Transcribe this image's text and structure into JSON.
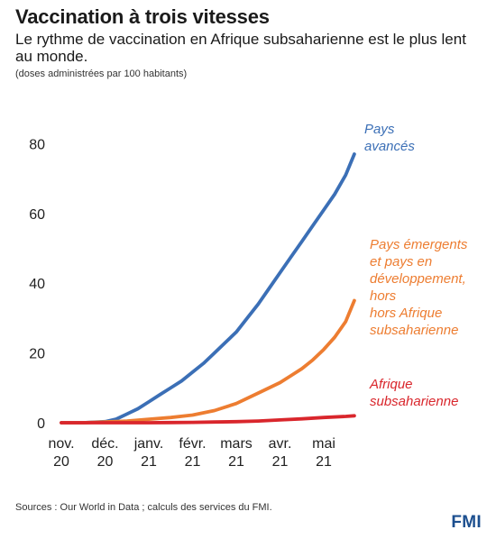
{
  "header": {
    "title": "Vaccination à trois vitesses",
    "subtitle": "Le rythme de vaccination en Afrique subsaharienne est le plus lent au monde.",
    "unit_note": "(doses administrées par 100 habitants)"
  },
  "footer": {
    "source": "Sources : Our World in Data ; calculs des services du FMI.",
    "logo": "FMI"
  },
  "chart_data": {
    "type": "line",
    "title": "Vaccination à trois vitesses",
    "ylim": [
      0,
      80
    ],
    "yticks": [
      0,
      20,
      40,
      60,
      80
    ],
    "grid": false,
    "xticks": [
      {
        "month": 0,
        "line1": "nov.",
        "line2": "20"
      },
      {
        "month": 1,
        "line1": "déc.",
        "line2": "20"
      },
      {
        "month": 2,
        "line1": "janv.",
        "line2": "21"
      },
      {
        "month": 3,
        "line1": "févr.",
        "line2": "21"
      },
      {
        "month": 4,
        "line1": "mars",
        "line2": "21"
      },
      {
        "month": 5,
        "line1": "avr.",
        "line2": "21"
      },
      {
        "month": 6,
        "line1": "mai",
        "line2": "21"
      }
    ],
    "series": [
      {
        "label_lines": [
          "Pays",
          "avancés"
        ],
        "color": "#3b6fb6",
        "x": [
          0,
          0.5,
          1.0,
          1.25,
          1.5,
          1.75,
          2.0,
          2.25,
          2.5,
          2.75,
          3.0,
          3.25,
          3.5,
          3.75,
          4.0,
          4.25,
          4.5,
          4.75,
          5.0,
          5.25,
          5.5,
          5.75,
          6.0,
          6.25,
          6.5,
          6.7
        ],
        "y": [
          0,
          0,
          0.3,
          1,
          2.5,
          4,
          6,
          8,
          10,
          12,
          14.5,
          17,
          20,
          23,
          26,
          30,
          34,
          38.5,
          43,
          47.5,
          52,
          56.5,
          61,
          65.5,
          71,
          77
        ]
      },
      {
        "label_lines": [
          "Pays émergents",
          "et pays en",
          "développement,",
          "hors",
          "hors Afrique",
          "subsaharienne"
        ],
        "color": "#ed7d31",
        "x": [
          0,
          0.5,
          1.0,
          1.5,
          2.0,
          2.5,
          3.0,
          3.5,
          4.0,
          4.5,
          5.0,
          5.25,
          5.5,
          5.75,
          6.0,
          6.25,
          6.5,
          6.7
        ],
        "y": [
          0,
          0,
          0.2,
          0.5,
          1,
          1.5,
          2.2,
          3.5,
          5.5,
          8.5,
          11.5,
          13.5,
          15.5,
          18,
          21,
          24.5,
          29,
          35
        ]
      },
      {
        "label_lines": [
          "Afrique",
          "subsaharienne"
        ],
        "color": "#d9262c",
        "x": [
          0,
          1.0,
          2.0,
          2.5,
          3.0,
          3.5,
          4.0,
          4.5,
          5.0,
          5.5,
          6.0,
          6.5,
          6.7
        ],
        "y": [
          0,
          0,
          0,
          0.05,
          0.1,
          0.2,
          0.3,
          0.5,
          0.8,
          1.1,
          1.5,
          1.8,
          2
        ]
      }
    ]
  }
}
